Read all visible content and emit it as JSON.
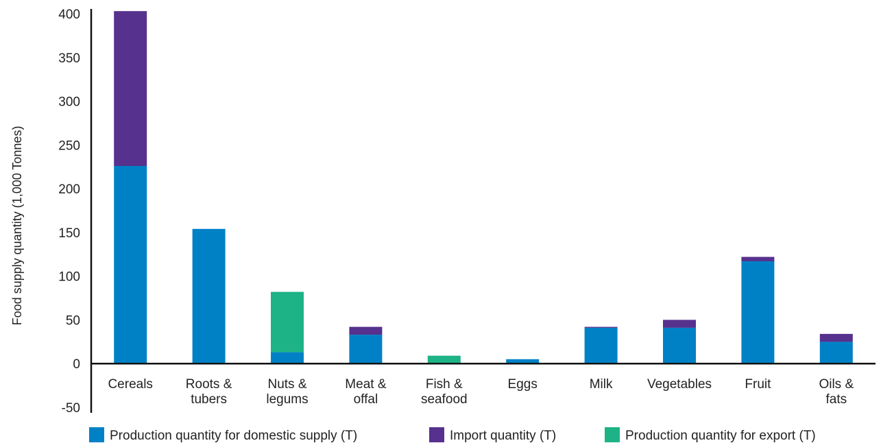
{
  "chart_data": {
    "type": "bar",
    "stacked": true,
    "ylabel": "Food supply quantity (1,000 Tonnes)",
    "xlabel": "",
    "ylim": [
      -50,
      400
    ],
    "yticks": [
      "400",
      "350",
      "300",
      "250",
      "200",
      "150",
      "100",
      "50",
      "0",
      "-50"
    ],
    "ytick_values": [
      400,
      350,
      300,
      250,
      200,
      150,
      100,
      50,
      0,
      -50
    ],
    "grid": false,
    "legend_position": "bottom",
    "categories": [
      [
        "Cereals"
      ],
      [
        "Roots &",
        "tubers"
      ],
      [
        "Nuts &",
        "legums"
      ],
      [
        "Meat &",
        "offal"
      ],
      [
        "Fish &",
        "seafood"
      ],
      [
        "Eggs"
      ],
      [
        "Milk"
      ],
      [
        "Vegetables"
      ],
      [
        "Fruit"
      ],
      [
        "Oils &",
        "fats"
      ]
    ],
    "series": [
      {
        "name": "Production quantity for domestic supply (T)",
        "color": "#0081c6",
        "values": [
          226,
          154,
          13,
          33,
          0,
          5,
          41,
          41,
          117,
          25
        ]
      },
      {
        "name": "Import quantity (T)",
        "color": "#56318d",
        "values": [
          177,
          0,
          0,
          9,
          0,
          0,
          1,
          9,
          5,
          9
        ]
      },
      {
        "name": "Production quantity for export (T)",
        "color": "#1db386",
        "values": [
          0,
          0,
          69,
          0,
          9,
          0,
          0,
          0,
          0,
          0
        ]
      }
    ]
  }
}
